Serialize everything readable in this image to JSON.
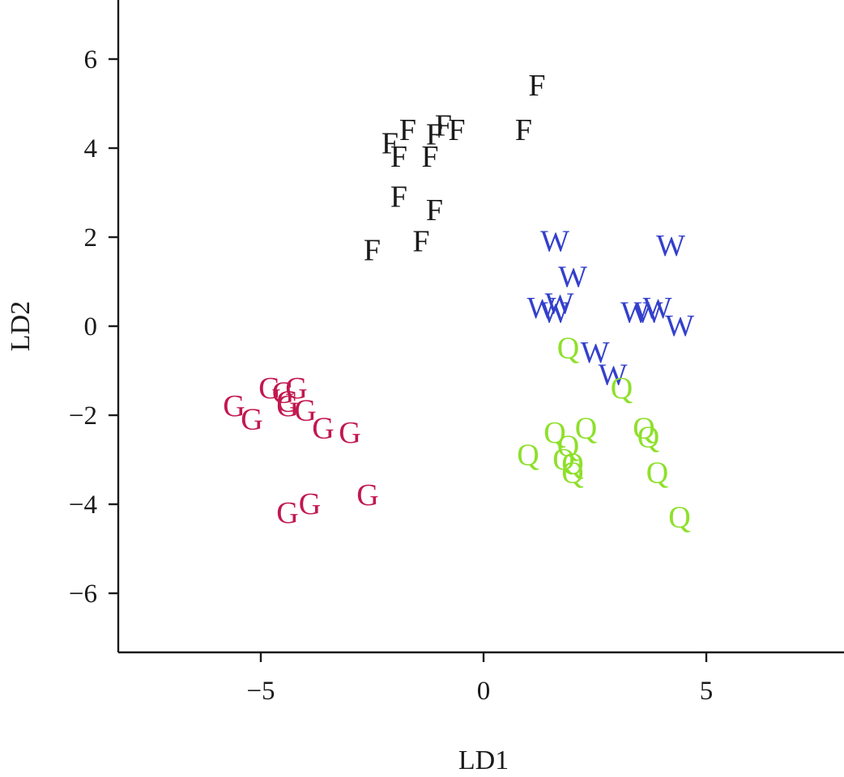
{
  "chart_data": {
    "type": "scatter",
    "title": "",
    "xlabel": "LD1",
    "ylabel": "LD2",
    "xlim": [
      -8.2,
      8.1
    ],
    "ylim": [
      -7.3,
      7.3
    ],
    "xticks": [
      -5,
      0,
      5
    ],
    "yticks": [
      6,
      4,
      2,
      0,
      -2,
      -4,
      -6
    ],
    "grid": false,
    "legend": "none",
    "series": [
      {
        "marker": "F",
        "color": "#1a1a1a",
        "points": [
          [
            1.2,
            5.4
          ],
          [
            0.9,
            4.4
          ],
          [
            -0.9,
            4.5
          ],
          [
            -0.6,
            4.4
          ],
          [
            -1.1,
            4.3
          ],
          [
            -1.7,
            4.4
          ],
          [
            -2.1,
            4.1
          ],
          [
            -1.9,
            3.8
          ],
          [
            -1.2,
            3.8
          ],
          [
            -1.9,
            2.9
          ],
          [
            -1.1,
            2.6
          ],
          [
            -1.4,
            1.9
          ],
          [
            -2.5,
            1.7
          ]
        ]
      },
      {
        "marker": "W",
        "color": "#3340cc",
        "points": [
          [
            1.6,
            1.9
          ],
          [
            4.2,
            1.8
          ],
          [
            2.0,
            1.1
          ],
          [
            1.7,
            0.5
          ],
          [
            1.3,
            0.4
          ],
          [
            1.6,
            0.3
          ],
          [
            3.4,
            0.3
          ],
          [
            3.9,
            0.4
          ],
          [
            3.7,
            0.3
          ],
          [
            4.4,
            0.0
          ],
          [
            2.5,
            -0.6
          ],
          [
            2.9,
            -1.1
          ]
        ]
      },
      {
        "marker": "Q",
        "color": "#8ee02a",
        "points": [
          [
            1.9,
            -0.5
          ],
          [
            3.1,
            -1.4
          ],
          [
            2.3,
            -2.3
          ],
          [
            1.6,
            -2.4
          ],
          [
            3.6,
            -2.3
          ],
          [
            3.7,
            -2.5
          ],
          [
            1.9,
            -2.7
          ],
          [
            1.0,
            -2.9
          ],
          [
            1.8,
            -3.0
          ],
          [
            2.0,
            -3.1
          ],
          [
            2.0,
            -3.3
          ],
          [
            3.9,
            -3.3
          ],
          [
            4.4,
            -4.3
          ]
        ]
      },
      {
        "marker": "G",
        "color": "#c2184f",
        "points": [
          [
            -4.8,
            -1.4
          ],
          [
            -4.5,
            -1.5
          ],
          [
            -4.2,
            -1.4
          ],
          [
            -4.4,
            -1.7
          ],
          [
            -5.6,
            -1.8
          ],
          [
            -4.4,
            -1.8
          ],
          [
            -4.0,
            -1.9
          ],
          [
            -5.2,
            -2.1
          ],
          [
            -3.6,
            -2.3
          ],
          [
            -3.0,
            -2.4
          ],
          [
            -4.4,
            -4.2
          ],
          [
            -3.9,
            -4.0
          ],
          [
            -2.6,
            -3.8
          ]
        ]
      }
    ]
  }
}
